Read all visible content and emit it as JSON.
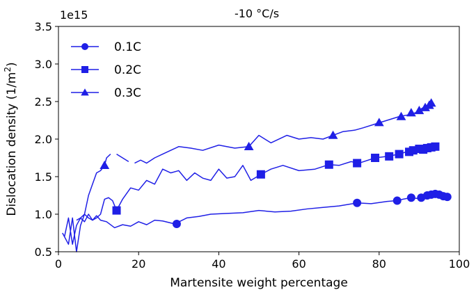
{
  "chart_data": {
    "type": "line",
    "title": "-10 °C/s",
    "xlabel": "Martensite weight percentage",
    "ylabel": "Dislocation density (1/m",
    "ylabel_sup": "2",
    "ylabel_end": ")",
    "offset_text": "1e15",
    "xlim": [
      0,
      100
    ],
    "ylim": [
      0.5,
      3.5
    ],
    "x_ticks": [
      0,
      20,
      40,
      60,
      80,
      100
    ],
    "x_tick_labels": [
      "0",
      "20",
      "40",
      "60",
      "80",
      "100"
    ],
    "y_ticks": [
      0.5,
      1.0,
      1.5,
      2.0,
      2.5,
      3.0,
      3.5
    ],
    "y_tick_labels": [
      "0.5",
      "1.0",
      "1.5",
      "2.0",
      "2.5",
      "3.0",
      "3.5"
    ],
    "legend_position": "top-left",
    "line_color": "#1f1fe6",
    "series": [
      {
        "name": "0.1C",
        "marker": "circle",
        "x": [
          1.0,
          2.5,
          3.5,
          4.5,
          5.5,
          6.5,
          7.5,
          8.5,
          9.5,
          10.5,
          12.0,
          14.0,
          16.0,
          18.0,
          20.0,
          22.0,
          24.0,
          26.0,
          29.0,
          32.0,
          35.0,
          38.0,
          42.0,
          46.0,
          50.0,
          54.0,
          58.0,
          62.0,
          66.0,
          70.0,
          74.5,
          78.0,
          82.0,
          84.5,
          86.0,
          88.0,
          89.5,
          91.0,
          92.0,
          93.0,
          94.0,
          95.0,
          96.0,
          97.0
        ],
        "y": [
          0.75,
          0.6,
          0.95,
          0.5,
          0.85,
          1.0,
          0.95,
          0.92,
          0.98,
          0.92,
          0.9,
          0.82,
          0.86,
          0.84,
          0.9,
          0.86,
          0.92,
          0.91,
          0.87,
          0.95,
          0.97,
          1.0,
          1.01,
          1.02,
          1.05,
          1.03,
          1.04,
          1.07,
          1.09,
          1.11,
          1.15,
          1.14,
          1.17,
          1.18,
          1.2,
          1.22,
          1.21,
          1.23,
          1.25,
          1.26,
          1.27,
          1.26,
          1.24,
          1.23
        ],
        "markers_x": [
          29.5,
          74.5,
          84.5,
          88.0,
          90.5,
          92.0,
          93.0,
          94.0,
          95.0,
          96.0,
          97.0
        ],
        "markers_y": [
          0.87,
          1.15,
          1.18,
          1.22,
          1.22,
          1.25,
          1.26,
          1.27,
          1.26,
          1.24,
          1.23
        ]
      },
      {
        "name": "0.2C",
        "marker": "square",
        "x": [
          1.5,
          2.5,
          3.5,
          4.5,
          5.5,
          6.5,
          7.5,
          8.5,
          9.5,
          10.5,
          11.5,
          12.5,
          13.5,
          14.5,
          16.0,
          18.0,
          20.0,
          22.0,
          24.0,
          26.0,
          28.0,
          30.0,
          32.0,
          34.0,
          36.0,
          38.0,
          40.0,
          42.0,
          44.0,
          46.0,
          48.0,
          50.5,
          53.0,
          56.0,
          60.0,
          64.0,
          67.5,
          70.0,
          73.0,
          75.0,
          79.0,
          82.0,
          85.0,
          88.0,
          90.0,
          92.0,
          94.0
        ],
        "y": [
          0.7,
          0.95,
          0.6,
          0.85,
          0.95,
          0.9,
          1.0,
          0.92,
          0.95,
          1.0,
          1.2,
          1.22,
          1.18,
          1.05,
          1.2,
          1.35,
          1.32,
          1.45,
          1.4,
          1.6,
          1.55,
          1.58,
          1.45,
          1.55,
          1.48,
          1.45,
          1.6,
          1.48,
          1.5,
          1.65,
          1.45,
          1.53,
          1.6,
          1.65,
          1.58,
          1.6,
          1.66,
          1.65,
          1.7,
          1.68,
          1.75,
          1.77,
          1.8,
          1.85,
          1.87,
          1.88,
          1.9
        ],
        "markers_x": [
          14.5,
          50.5,
          67.5,
          74.5,
          79.0,
          82.5,
          85.0,
          87.5,
          88.5,
          90.0,
          91.0,
          92.0,
          93.0,
          94.0
        ],
        "markers_y": [
          1.05,
          1.53,
          1.66,
          1.68,
          1.75,
          1.77,
          1.8,
          1.83,
          1.85,
          1.87,
          1.86,
          1.88,
          1.89,
          1.9
        ]
      },
      {
        "name": "0.3C",
        "marker": "triangle",
        "x": [
          4.5,
          5.5,
          6.5,
          7.5,
          8.5,
          9.5,
          10.5,
          11.5,
          12.0,
          13.0,
          14.5,
          16.0,
          17.5,
          19.0,
          20.5,
          22.0,
          24.0,
          26.0,
          28.0,
          30.0,
          33.0,
          36.0,
          40.0,
          44.0,
          47.5,
          50.0,
          53.0,
          57.0,
          60.0,
          63.0,
          66.0,
          68.5,
          71.0,
          74.0,
          76.0,
          79.0,
          82.0,
          85.0,
          87.0,
          89.0,
          91.0,
          93.0
        ],
        "y": [
          0.92,
          0.95,
          1.0,
          1.25,
          1.4,
          1.55,
          1.58,
          1.65,
          1.75,
          1.8,
          1.8,
          1.75,
          1.7,
          1.68,
          1.72,
          1.68,
          1.75,
          1.8,
          1.85,
          1.9,
          1.88,
          1.85,
          1.92,
          1.88,
          1.9,
          2.05,
          1.95,
          2.05,
          2.0,
          2.02,
          2.0,
          2.05,
          2.1,
          2.12,
          2.15,
          2.2,
          2.25,
          2.3,
          2.32,
          2.35,
          2.42,
          2.45
        ],
        "gaps_after_x": [
          13.0,
          17.5
        ],
        "markers_x": [
          11.5,
          47.5,
          68.5,
          80.0,
          85.5,
          88.0,
          90.0,
          91.5,
          92.5,
          93.0
        ],
        "markers_y": [
          1.65,
          1.9,
          2.05,
          2.22,
          2.3,
          2.35,
          2.38,
          2.42,
          2.45,
          2.48
        ]
      }
    ]
  }
}
